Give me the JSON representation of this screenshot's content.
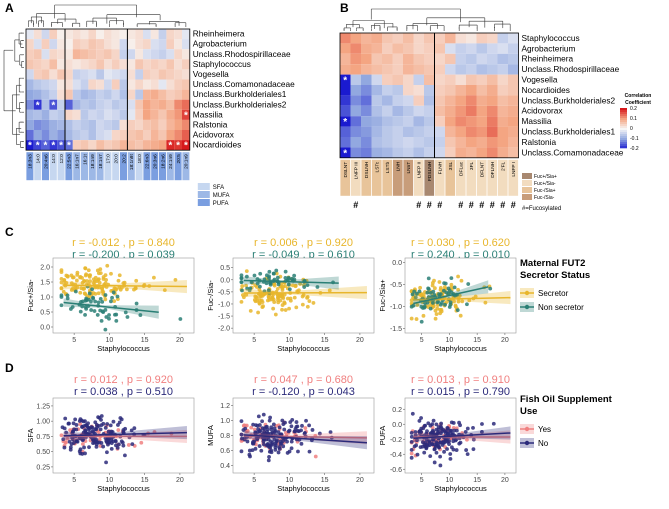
{
  "panels": {
    "A": "A",
    "B": "B",
    "C": "C",
    "D": "D"
  },
  "colors": {
    "red": "#d7191c",
    "pink": "#f4a582",
    "white": "#f7f7f7",
    "lav": "#92a8e0",
    "blue": "#1a1ad0",
    "secretor": "#e8b62c",
    "nonsecretor": "#2a7f75",
    "yes": "#f08080",
    "no": "#2b2a7a",
    "sfa": "#c6d7f0",
    "mufa": "#9db8e6",
    "pufa": "#7a9ee0",
    "hmo_a": "#f2dcbf",
    "hmo_b": "#e8c49a",
    "hmo_c": "#c89d7a",
    "hmo_d": "#a88870"
  },
  "chart_data": [
    {
      "id": "A",
      "type": "heatmap",
      "rows": [
        "Rheinheimera",
        "Agrobacterium",
        "Unclass.Rhodospirillaceae",
        "Staphylococcus",
        "Vogesella",
        "Unclass.Comamonadaceae",
        "Unclass.Burkholderiales1",
        "Unclass.Burkholderiales2",
        "Massilia",
        "Ralstonia",
        "Acidovorax",
        "Nocardioides"
      ],
      "columns": [
        "18:3n3",
        "14:0",
        "20:4n6",
        "14:0",
        "12:0",
        "22:5n3",
        "16:1n7",
        "16:1t",
        "18:1n9",
        "18:1n7",
        "17:0",
        "20:0",
        "20:2",
        "18:1n9t",
        "18:0",
        "22:6n3",
        "20:3n6",
        "18:2n6",
        "24:1n9",
        "20:5",
        "20:1n9"
      ],
      "column_groups": [
        "PUFA",
        "SFA",
        "PUFA",
        "SFA",
        "SFA",
        "PUFA",
        "MUFA",
        "MUFA",
        "MUFA",
        "MUFA",
        "SFA",
        "SFA",
        "PUFA",
        "MUFA",
        "SFA",
        "PUFA",
        "PUFA",
        "PUFA",
        "MUFA",
        "PUFA",
        "MUFA"
      ],
      "legend": [
        "SFA",
        "MUFA",
        "PUFA"
      ],
      "values": [
        [
          -0.02,
          0.03,
          -0.04,
          0.05,
          0.01,
          0.02,
          0.03,
          0.02,
          0.04,
          0.01,
          0.03,
          0.02,
          0.01,
          0.02,
          0.03,
          -0.03,
          0.02,
          -0.05,
          0.04,
          0.03,
          -0.02
        ],
        [
          0.04,
          -0.03,
          0.05,
          -0.04,
          0.02,
          0.01,
          0.05,
          0.04,
          0.06,
          0.05,
          0.03,
          0.02,
          -0.04,
          0.01,
          0.03,
          0.04,
          -0.03,
          -0.04,
          0.05,
          0.02,
          -0.03
        ],
        [
          0.05,
          0.06,
          -0.03,
          0.04,
          0.03,
          0.02,
          0.08,
          0.07,
          0.06,
          0.05,
          0.06,
          0.04,
          -0.05,
          -0.04,
          0.02,
          -0.03,
          -0.04,
          -0.05,
          -0.03,
          0.04,
          0.02
        ],
        [
          0.06,
          0.05,
          0.04,
          0.07,
          0.02,
          0.03,
          0.02,
          0.03,
          0.04,
          0.06,
          0.03,
          0.05,
          0.03,
          0.02,
          0.06,
          0.04,
          0.05,
          0.04,
          0.06,
          0.03,
          0.05
        ],
        [
          -0.04,
          0.05,
          0.06,
          0.03,
          0.06,
          0.04,
          -0.05,
          -0.04,
          -0.03,
          -0.06,
          -0.02,
          -0.03,
          -0.04,
          0.03,
          -0.05,
          0.05,
          0.04,
          0.06,
          0.05,
          0.04,
          0.03
        ],
        [
          -0.08,
          -0.06,
          -0.05,
          -0.04,
          0.02,
          0.03,
          -0.03,
          -0.05,
          0.04,
          0.03,
          -0.04,
          0.05,
          -0.06,
          0.02,
          0.04,
          0.02,
          0.03,
          -0.02,
          0.03,
          0.05,
          0.06
        ],
        [
          -0.1,
          -0.09,
          -0.07,
          -0.05,
          0.03,
          0.06,
          -0.06,
          -0.08,
          -0.07,
          -0.05,
          -0.06,
          -0.04,
          -0.07,
          0.04,
          -0.06,
          0.08,
          0.09,
          0.07,
          0.05,
          0.06,
          0.08
        ],
        [
          -0.12,
          -0.18,
          -0.07,
          -0.16,
          -0.05,
          -0.15,
          -0.08,
          -0.06,
          -0.07,
          -0.05,
          -0.04,
          -0.06,
          -0.05,
          -0.03,
          0.06,
          0.1,
          0.08,
          0.09,
          0.07,
          0.12,
          0.14
        ],
        [
          -0.08,
          -0.07,
          -0.09,
          -0.05,
          -0.06,
          0.04,
          0.03,
          -0.06,
          -0.04,
          -0.05,
          -0.03,
          -0.04,
          -0.06,
          -0.02,
          0.05,
          0.1,
          0.08,
          0.06,
          0.09,
          0.11,
          0.17
        ],
        [
          -0.1,
          -0.12,
          -0.11,
          -0.09,
          -0.08,
          -0.07,
          -0.05,
          -0.06,
          -0.07,
          -0.04,
          -0.05,
          -0.06,
          0.03,
          0.05,
          0.04,
          0.06,
          0.07,
          0.05,
          0.08,
          0.1,
          0.12
        ],
        [
          -0.14,
          -0.1,
          -0.12,
          -0.09,
          -0.11,
          -0.08,
          -0.06,
          -0.05,
          -0.07,
          -0.04,
          -0.03,
          0.04,
          0.05,
          0.06,
          0.07,
          0.05,
          0.08,
          0.06,
          0.1,
          0.12,
          0.15
        ],
        [
          -0.2,
          -0.17,
          -0.15,
          -0.18,
          -0.16,
          -0.14,
          0.05,
          0.06,
          0.04,
          0.07,
          0.05,
          0.06,
          0.08,
          0.07,
          0.06,
          0.08,
          0.09,
          0.1,
          0.19,
          0.18,
          0.2
        ]
      ],
      "significant": [
        [
          7,
          1
        ],
        [
          7,
          3
        ],
        [
          8,
          20
        ],
        [
          11,
          0
        ],
        [
          11,
          1
        ],
        [
          11,
          2
        ],
        [
          11,
          3
        ],
        [
          11,
          4
        ],
        [
          11,
          5
        ],
        [
          11,
          18
        ],
        [
          11,
          19
        ],
        [
          11,
          20
        ]
      ],
      "group_breaks": [
        5,
        13
      ]
    },
    {
      "id": "B",
      "type": "heatmap",
      "rows": [
        "Staphylococcus",
        "Agrobacterium",
        "Rheinheimera",
        "Unclass.Rhodospirillaceae",
        "Vogesella",
        "Nocardioides",
        "Unclass.Burkholderiales2",
        "Acidovorax",
        "Massilia",
        "Unclass.Burkholderiales1",
        "Ralstonia",
        "Unclass.Comamonadaceae"
      ],
      "columns": [
        "DSLNT",
        "LNFP III",
        "DSLNH",
        "LSTc",
        "LSTb",
        "LNH",
        "LNnT",
        "LNFP II",
        "FDSLNH",
        "FLNH",
        "3SL",
        "DFLac",
        "3FL",
        "DFLNT",
        "DFLNH",
        "2'FL",
        "LNFP I"
      ],
      "column_groups": [
        "Fuc-/Sia+",
        "Fuc+/Sia-",
        "Fuc-/Sia+",
        "Fuc-/Sia+",
        "Fuc-/Sia+",
        "Fuc-/Sia-",
        "Fuc-/Sia-",
        "Fuc+/Sia-",
        "Fuc+/Sia+",
        "Fuc+/Sia-",
        "Fuc-/Sia+",
        "Fuc+/Sia-",
        "Fuc+/Sia-",
        "Fuc+/Sia-",
        "Fuc+/Sia-",
        "Fuc+/Sia-",
        "Fuc+/Sia-"
      ],
      "legend": [
        "Fuc+/Sia+",
        "Fuc+/Sia-",
        "Fuc-/Sia+",
        "Fuc-/Sia-"
      ],
      "fucosylated_marker": "#",
      "fucosylated_columns": [
        1,
        7,
        8,
        9,
        11,
        12,
        13,
        14,
        15,
        16
      ],
      "fucosylated_label": "#=Fucosylated",
      "colorbar": {
        "title": "Correlation Coefficient",
        "ticks": [
          "0.2",
          "0.1",
          "0",
          "-0.1",
          "-0.2"
        ]
      },
      "values": [
        [
          0.12,
          0.1,
          0.08,
          0.09,
          0.06,
          0.05,
          0.07,
          0.04,
          0.06,
          0.05,
          0.08,
          0.03,
          0.02,
          0.05,
          0.04,
          -0.05,
          -0.03
        ],
        [
          0.1,
          0.12,
          0.09,
          0.08,
          0.05,
          0.07,
          0.06,
          0.04,
          0.05,
          0.06,
          -0.03,
          -0.05,
          -0.04,
          -0.06,
          -0.04,
          -0.03,
          -0.05
        ],
        [
          0.08,
          0.11,
          0.1,
          0.06,
          0.07,
          0.05,
          0.08,
          0.06,
          0.05,
          0.04,
          0.06,
          -0.05,
          -0.06,
          -0.04,
          -0.05,
          -0.07,
          -0.06
        ],
        [
          0.09,
          0.1,
          0.08,
          0.07,
          0.06,
          0.05,
          0.08,
          0.07,
          0.06,
          0.05,
          -0.04,
          -0.06,
          -0.05,
          -0.07,
          -0.06,
          -0.05,
          -0.08
        ],
        [
          -0.2,
          -0.06,
          -0.1,
          -0.04,
          0.05,
          0.06,
          0.04,
          -0.05,
          0.07,
          0.04,
          0.05,
          0.03,
          0.06,
          0.05,
          0.07,
          0.04,
          0.06
        ],
        [
          -0.22,
          -0.1,
          -0.12,
          -0.08,
          -0.05,
          -0.06,
          0.04,
          0.03,
          -0.06,
          0.05,
          0.06,
          0.08,
          0.1,
          0.07,
          0.09,
          0.05,
          0.06
        ],
        [
          -0.18,
          -0.12,
          -0.14,
          -0.06,
          -0.08,
          -0.05,
          -0.04,
          0.05,
          -0.07,
          0.06,
          0.08,
          0.1,
          0.12,
          0.09,
          0.1,
          0.07,
          0.08
        ],
        [
          -0.16,
          -0.1,
          -0.12,
          -0.07,
          -0.05,
          -0.08,
          -0.06,
          -0.04,
          -0.05,
          0.07,
          0.09,
          0.11,
          0.13,
          0.1,
          0.12,
          0.08,
          0.09
        ],
        [
          -0.2,
          -0.14,
          -0.1,
          -0.09,
          -0.07,
          -0.06,
          -0.05,
          -0.08,
          -0.06,
          0.05,
          0.1,
          0.12,
          0.11,
          0.1,
          0.13,
          0.09,
          0.1
        ],
        [
          -0.15,
          -0.12,
          -0.11,
          -0.08,
          -0.06,
          -0.05,
          -0.07,
          -0.06,
          -0.05,
          -0.04,
          0.08,
          0.1,
          0.12,
          0.11,
          0.14,
          0.1,
          0.09
        ],
        [
          -0.14,
          -0.1,
          -0.12,
          -0.07,
          -0.06,
          -0.05,
          -0.04,
          -0.05,
          -0.06,
          -0.05,
          0.06,
          0.08,
          0.1,
          0.09,
          0.11,
          0.1,
          0.08
        ],
        [
          -0.21,
          -0.12,
          -0.13,
          -0.09,
          -0.08,
          -0.06,
          -0.05,
          -0.07,
          -0.05,
          -0.04,
          0.05,
          0.09,
          0.08,
          0.1,
          0.12,
          0.09,
          0.07
        ]
      ],
      "significant": [
        [
          4,
          0
        ],
        [
          8,
          0
        ],
        [
          11,
          0
        ]
      ],
      "group_break": 9
    },
    {
      "id": "C",
      "type": "scatter",
      "legend_title": "Maternal FUT2 Secretor Status",
      "legend": [
        "Secretor",
        "Non secretor"
      ],
      "xlabel": "Staphylococcus",
      "subplots": [
        {
          "ylabel": "Fuc+/Sia-",
          "xlim": [
            2,
            22
          ],
          "ylim": [
            -0.2,
            2.3
          ],
          "yticks": [
            0.0,
            0.5,
            1.0,
            1.5,
            2.0
          ],
          "xticks": [
            5,
            10,
            15,
            20
          ],
          "stats": [
            {
              "group": "Secretor",
              "r": "-0.012",
              "p": "0.840",
              "slope": -0.0024,
              "intercept": 1.4
            },
            {
              "group": "Non secretor",
              "r": "-0.200",
              "p": "0.039",
              "slope": -0.024,
              "intercept": 0.9
            }
          ]
        },
        {
          "ylabel": "Fuc-/Sia-",
          "xlim": [
            2,
            22
          ],
          "ylim": [
            -2.2,
            0.9
          ],
          "yticks": [
            -2.0,
            -1.5,
            -1.0,
            -0.5,
            0.0,
            0.5
          ],
          "xticks": [
            5,
            10,
            15,
            20
          ],
          "stats": [
            {
              "group": "Secretor",
              "r": "0.006",
              "p": "0.920",
              "slope": 0.001,
              "intercept": -0.55
            },
            {
              "group": "Non secretor",
              "r": "-0.049",
              "p": "0.610",
              "slope": -0.008,
              "intercept": 0.0
            }
          ]
        },
        {
          "ylabel": "Fuc-/Sia+",
          "xlim": [
            2,
            22
          ],
          "ylim": [
            -1.6,
            0.1
          ],
          "yticks": [
            -1.5,
            -1.0,
            -0.5,
            0.0
          ],
          "xticks": [
            5,
            10,
            15,
            20
          ],
          "stats": [
            {
              "group": "Secretor",
              "r": "0.030",
              "p": "0.620",
              "slope": 0.003,
              "intercept": -0.86
            },
            {
              "group": "Non secretor",
              "r": "0.240",
              "p": "0.010",
              "slope": 0.028,
              "intercept": -1.03
            }
          ]
        }
      ]
    },
    {
      "id": "D",
      "type": "scatter",
      "legend_title": "Fish Oil Supplement Use",
      "legend": [
        "Yes",
        "No"
      ],
      "xlabel": "Staphylococcus",
      "subplots": [
        {
          "ylabel": "SFA",
          "xlim": [
            2,
            22
          ],
          "ylim": [
            0.15,
            1.38
          ],
          "yticks": [
            0.25,
            0.5,
            0.75,
            1.0,
            1.25
          ],
          "xticks": [
            5,
            10,
            15,
            20
          ],
          "stats": [
            {
              "group": "Yes",
              "r": "0.012",
              "p": "0.920",
              "slope": 0.0,
              "intercept": 0.75
            },
            {
              "group": "No",
              "r": "0.038",
              "p": "0.510",
              "slope": 0.003,
              "intercept": 0.75
            }
          ]
        },
        {
          "ylabel": "MUFA",
          "xlim": [
            2,
            22
          ],
          "ylim": [
            0.3,
            1.3
          ],
          "yticks": [
            0.4,
            0.6,
            0.8,
            1.0,
            1.2
          ],
          "xticks": [
            5,
            10,
            15,
            20
          ],
          "stats": [
            {
              "group": "Yes",
              "r": "0.047",
              "p": "0.680",
              "slope": -0.0015,
              "intercept": 0.8
            },
            {
              "group": "No",
              "r": "-0.120",
              "p": "0.043",
              "slope": -0.006,
              "intercept": 0.83
            }
          ]
        },
        {
          "ylabel": "PUFA",
          "xlim": [
            2,
            22
          ],
          "ylim": [
            -0.65,
            0.35
          ],
          "yticks": [
            -0.6,
            -0.4,
            -0.2,
            0.0,
            0.2
          ],
          "xticks": [
            5,
            10,
            15,
            20
          ],
          "stats": [
            {
              "group": "Yes",
              "r": "0.013",
              "p": "0.910",
              "slope": 0.0,
              "intercept": -0.17
            },
            {
              "group": "No",
              "r": "0.015",
              "p": "0.790",
              "slope": 0.004,
              "intercept": -0.2
            }
          ]
        }
      ]
    }
  ]
}
